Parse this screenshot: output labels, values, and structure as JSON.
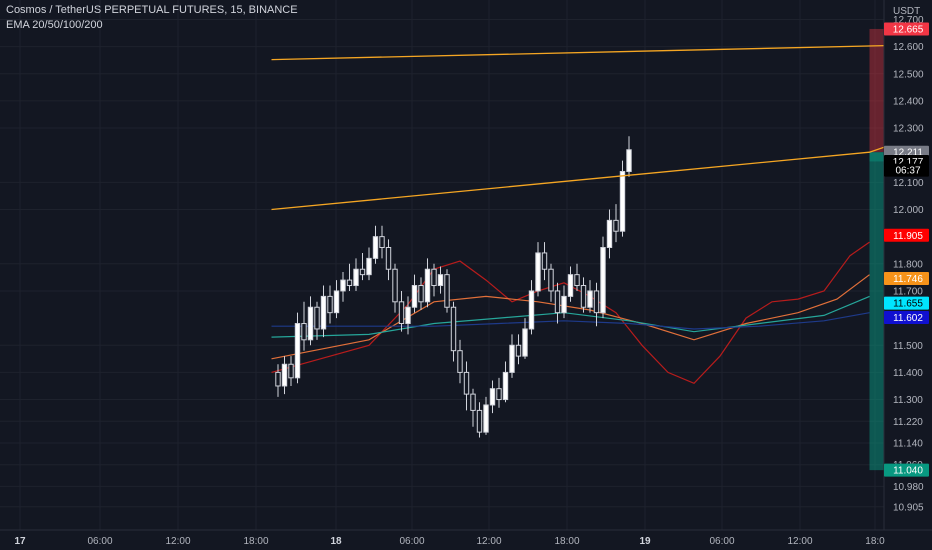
{
  "header": {
    "symbol_line": "Cosmos / TetherUS PERPETUAL FUTURES, 15, BINANCE",
    "indicator_line": "EMA 20/50/100/200"
  },
  "chart_data": {
    "type": "candlestick",
    "currency_label": "USDT",
    "y_ticks": [
      "12.700",
      "12.600",
      "12.500",
      "12.400",
      "12.300",
      "12.100",
      "12.000",
      "11.800",
      "11.700",
      "11.500",
      "11.400",
      "11.300",
      "11.220",
      "11.140",
      "11.060",
      "10.980",
      "10.905"
    ],
    "x_ticks": [
      "17",
      "06:00",
      "12:00",
      "18:00",
      "18",
      "06:00",
      "12:00",
      "18:00",
      "19",
      "06:00",
      "12:00",
      "18:0"
    ],
    "bold_x_ticks": [
      "17",
      "18",
      "19"
    ],
    "price_tags": [
      {
        "label": "12.665",
        "value": 12.665,
        "color": "#f23645"
      },
      {
        "label": "12.211",
        "value": 12.211,
        "color": "#787b86"
      },
      {
        "label": "12.177",
        "value": 12.177,
        "color": "#000000"
      },
      {
        "label": "06:37",
        "value": 12.145,
        "color": "#000000"
      },
      {
        "label": "11.905",
        "value": 11.905,
        "color": "#ff0000"
      },
      {
        "label": "11.746",
        "value": 11.746,
        "color": "#f7931a"
      },
      {
        "label": "11.655",
        "value": 11.655,
        "color": "#00e5ff"
      },
      {
        "label": "11.602",
        "value": 11.602,
        "color": "#1010d0"
      },
      {
        "label": "11.040",
        "value": 11.04,
        "color": "#089981"
      }
    ],
    "position": {
      "entry": 12.211,
      "stop": 12.665,
      "target": 11.04,
      "start_time": 77,
      "end_time": 181
    },
    "trendlines": [
      {
        "points": [
          [
            -15,
            12.552
          ],
          [
            192,
            12.665
          ]
        ],
        "color": "#f5a623"
      },
      {
        "points": [
          [
            -15,
            12.0
          ],
          [
            77,
            12.211
          ],
          [
            100,
            12.4
          ]
        ],
        "color": "#f5a623"
      }
    ],
    "ema": [
      {
        "name": "20",
        "color": "#b71c1c",
        "points": [
          [
            -15,
            11.4
          ],
          [
            0,
            11.5
          ],
          [
            6,
            11.65
          ],
          [
            10,
            11.78
          ],
          [
            14,
            11.81
          ],
          [
            18,
            11.74
          ],
          [
            22,
            11.66
          ],
          [
            26,
            11.7
          ],
          [
            30,
            11.73
          ],
          [
            34,
            11.68
          ],
          [
            38,
            11.62
          ],
          [
            42,
            11.5
          ],
          [
            46,
            11.4
          ],
          [
            50,
            11.36
          ],
          [
            54,
            11.46
          ],
          [
            58,
            11.6
          ],
          [
            62,
            11.66
          ],
          [
            66,
            11.67
          ],
          [
            70,
            11.7
          ],
          [
            74,
            11.83
          ],
          [
            77,
            11.88
          ]
        ]
      },
      {
        "name": "50",
        "color": "#e2703a",
        "points": [
          [
            -15,
            11.45
          ],
          [
            0,
            11.52
          ],
          [
            10,
            11.66
          ],
          [
            18,
            11.68
          ],
          [
            26,
            11.66
          ],
          [
            34,
            11.63
          ],
          [
            42,
            11.58
          ],
          [
            50,
            11.52
          ],
          [
            58,
            11.58
          ],
          [
            66,
            11.62
          ],
          [
            72,
            11.67
          ],
          [
            77,
            11.76
          ]
        ]
      },
      {
        "name": "100",
        "color": "#26a69a",
        "points": [
          [
            -15,
            11.53
          ],
          [
            0,
            11.54
          ],
          [
            10,
            11.58
          ],
          [
            20,
            11.6
          ],
          [
            30,
            11.62
          ],
          [
            40,
            11.59
          ],
          [
            50,
            11.55
          ],
          [
            60,
            11.58
          ],
          [
            70,
            11.61
          ],
          [
            77,
            11.68
          ]
        ]
      },
      {
        "name": "200",
        "color": "#1e3a8a",
        "points": [
          [
            -15,
            11.57
          ],
          [
            0,
            11.57
          ],
          [
            10,
            11.57
          ],
          [
            20,
            11.58
          ],
          [
            30,
            11.59
          ],
          [
            40,
            11.58
          ],
          [
            50,
            11.56
          ],
          [
            60,
            11.57
          ],
          [
            70,
            11.59
          ],
          [
            77,
            11.62
          ]
        ]
      }
    ],
    "candles": [
      [
        -14,
        11.4,
        11.35,
        11.43,
        11.31
      ],
      [
        -13,
        11.35,
        11.43,
        11.46,
        11.32
      ],
      [
        -12,
        11.43,
        11.38,
        11.46,
        11.35
      ],
      [
        -11,
        11.38,
        11.58,
        11.62,
        11.36
      ],
      [
        -10,
        11.58,
        11.52,
        11.66,
        11.48
      ],
      [
        -9,
        11.52,
        11.64,
        11.68,
        11.5
      ],
      [
        -8,
        11.64,
        11.56,
        11.66,
        11.52
      ],
      [
        -7,
        11.56,
        11.68,
        11.72,
        11.53
      ],
      [
        -6,
        11.68,
        11.62,
        11.72,
        11.58
      ],
      [
        -5,
        11.62,
        11.7,
        11.74,
        11.6
      ],
      [
        -4,
        11.7,
        11.74,
        11.77,
        11.66
      ],
      [
        -3,
        11.74,
        11.72,
        11.8,
        11.7
      ],
      [
        -2,
        11.72,
        11.78,
        11.82,
        11.7
      ],
      [
        -1,
        11.78,
        11.76,
        11.84,
        11.74
      ],
      [
        0,
        11.76,
        11.82,
        11.86,
        11.74
      ],
      [
        1,
        11.82,
        11.9,
        11.94,
        11.8
      ],
      [
        2,
        11.9,
        11.86,
        11.94,
        11.82
      ],
      [
        3,
        11.86,
        11.78,
        11.89,
        11.74
      ],
      [
        4,
        11.78,
        11.66,
        11.8,
        11.62
      ],
      [
        5,
        11.66,
        11.58,
        11.7,
        11.55
      ],
      [
        6,
        11.58,
        11.64,
        11.68,
        11.54
      ],
      [
        7,
        11.64,
        11.72,
        11.76,
        11.62
      ],
      [
        8,
        11.72,
        11.66,
        11.75,
        11.63
      ],
      [
        9,
        11.66,
        11.78,
        11.82,
        11.64
      ],
      [
        10,
        11.78,
        11.72,
        11.8,
        11.68
      ],
      [
        11,
        11.72,
        11.76,
        11.79,
        11.69
      ],
      [
        12,
        11.76,
        11.64,
        11.78,
        11.62
      ],
      [
        13,
        11.64,
        11.48,
        11.66,
        11.44
      ],
      [
        14,
        11.48,
        11.4,
        11.52,
        11.36
      ],
      [
        15,
        11.4,
        11.32,
        11.44,
        11.26
      ],
      [
        16,
        11.32,
        11.26,
        11.34,
        11.2
      ],
      [
        17,
        11.26,
        11.18,
        11.29,
        11.16
      ],
      [
        18,
        11.18,
        11.28,
        11.31,
        11.17
      ],
      [
        19,
        11.28,
        11.34,
        11.37,
        11.25
      ],
      [
        20,
        11.34,
        11.3,
        11.38,
        11.27
      ],
      [
        21,
        11.3,
        11.4,
        11.44,
        11.29
      ],
      [
        22,
        11.4,
        11.5,
        11.54,
        11.38
      ],
      [
        23,
        11.5,
        11.46,
        11.54,
        11.43
      ],
      [
        24,
        11.46,
        11.56,
        11.6,
        11.45
      ],
      [
        25,
        11.56,
        11.7,
        11.74,
        11.54
      ],
      [
        26,
        11.7,
        11.84,
        11.88,
        11.68
      ],
      [
        27,
        11.84,
        11.78,
        11.88,
        11.74
      ],
      [
        28,
        11.78,
        11.7,
        11.8,
        11.66
      ],
      [
        29,
        11.7,
        11.62,
        11.73,
        11.58
      ],
      [
        30,
        11.62,
        11.68,
        11.72,
        11.6
      ],
      [
        31,
        11.68,
        11.76,
        11.79,
        11.66
      ],
      [
        32,
        11.76,
        11.72,
        11.8,
        11.7
      ],
      [
        33,
        11.72,
        11.64,
        11.75,
        11.62
      ],
      [
        34,
        11.64,
        11.7,
        11.74,
        11.62
      ],
      [
        35,
        11.7,
        11.62,
        11.73,
        11.57
      ],
      [
        36,
        11.62,
        11.86,
        11.9,
        11.6
      ],
      [
        37,
        11.86,
        11.96,
        12.0,
        11.82
      ],
      [
        38,
        11.96,
        11.92,
        12.02,
        11.88
      ],
      [
        39,
        11.92,
        12.14,
        12.18,
        11.9
      ],
      [
        40,
        12.14,
        12.22,
        12.27,
        12.12
      ]
    ]
  }
}
